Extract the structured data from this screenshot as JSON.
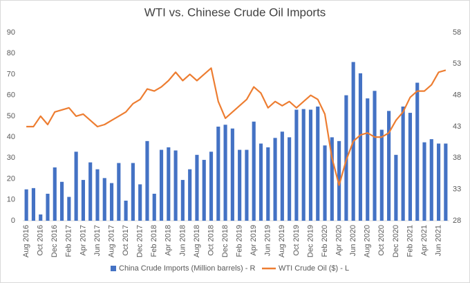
{
  "chart_data": {
    "type": "bar-line",
    "title": "WTI vs. Chinese Crude Oil Imports",
    "categories": [
      "Aug 2016",
      null,
      "Oct 2016",
      null,
      "Dec 2016",
      null,
      "Feb 2017",
      null,
      "Apr 2017",
      null,
      "Jun 2017",
      null,
      "Aug 2017",
      null,
      "Oct 2017",
      null,
      "Dec 2017",
      null,
      "Feb 2018",
      null,
      "Apr 2018",
      null,
      "Jun 2018",
      null,
      "Aug 2018",
      null,
      "Oct 2018",
      null,
      "Dec 2018",
      null,
      "Feb 2019",
      null,
      "Apr 2019",
      null,
      "Jun 2019",
      null,
      "Aug 2019",
      null,
      "Oct 2019",
      null,
      "Dec 2019",
      null,
      "Feb 2020",
      null,
      "Apr 2020",
      null,
      "Jun 2020",
      null,
      "Aug 2020",
      null,
      "Oct 2020",
      null,
      "Dec 2020",
      null,
      "Feb 2021",
      null,
      "Apr 2021",
      null,
      "Jun 2021",
      null
    ],
    "series": [
      {
        "name": "China Crude Imports (Million barrels) - R",
        "color": "#4472c4",
        "kind": "bar",
        "axis": "y2",
        "values": [
          33,
          33.2,
          29,
          32.3,
          36.5,
          34.2,
          31.8,
          39,
          34.5,
          37.3,
          36.2,
          34.8,
          34,
          37.2,
          31.2,
          37.2,
          33.8,
          40.7,
          32.3,
          39.3,
          39.7,
          39.2,
          34.5,
          36.2,
          38.5,
          37.7,
          39,
          43,
          43.3,
          42.7,
          39.3,
          39.3,
          43.8,
          40.3,
          39.7,
          41.2,
          42.2,
          41.3,
          45.7,
          45.8,
          45.7,
          46.2,
          40,
          41.3,
          40.7,
          48,
          53.3,
          51.5,
          47.5,
          48.7,
          42.5,
          45.5,
          38.5,
          46.2,
          45.2,
          50,
          40.5,
          41,
          40.3,
          40.3
        ]
      },
      {
        "name": "WTI Crude Oil ($) - L",
        "color": "#ed7d31",
        "kind": "line",
        "values": [
          45,
          45,
          50,
          46,
          52,
          53,
          54,
          50,
          51,
          48,
          45,
          46,
          48,
          50,
          52,
          56,
          58,
          63,
          62,
          64,
          67,
          71,
          67,
          70,
          67,
          70,
          73,
          57,
          49,
          52,
          55,
          58,
          64,
          61,
          54,
          57,
          55,
          57,
          54,
          57,
          60,
          58,
          51,
          30,
          17,
          29,
          38,
          41,
          42,
          40,
          40,
          42,
          48,
          52,
          59,
          62,
          62,
          65,
          71,
          72
        ]
      }
    ],
    "ylim": [
      0,
      90
    ],
    "yticks": [
      0,
      10,
      20,
      30,
      40,
      50,
      60,
      70,
      80,
      90
    ],
    "y2lim": [
      28,
      58
    ],
    "y2ticks": [
      28,
      33,
      38,
      43,
      48,
      53,
      58
    ]
  }
}
